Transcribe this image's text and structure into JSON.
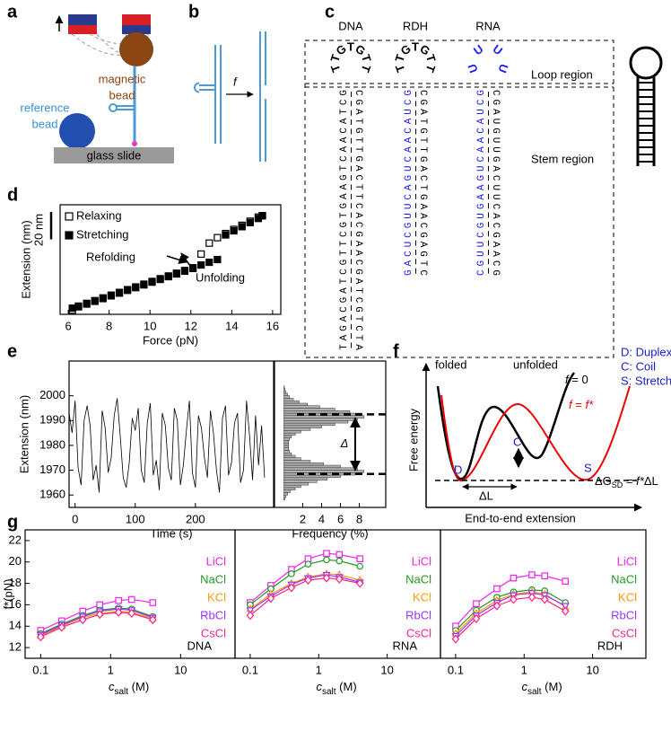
{
  "panel_labels": [
    "a",
    "b",
    "c",
    "d",
    "e",
    "f",
    "g"
  ],
  "panel_a": {
    "magnetic_bead": [
      "magnetic",
      "bead"
    ],
    "reference_bead": [
      "reference",
      "bead"
    ],
    "glass_slide": "glass slide"
  },
  "panel_b": {
    "force": "f"
  },
  "panel_c": {
    "columns": [
      {
        "name": "DNA",
        "loop": [
          "T",
          "T",
          "G",
          "T",
          "G",
          "T",
          "T"
        ],
        "left": "TAGACGATCGTTCGTGAAGTCAACATCG",
        "right": "CGATGTTGACTTCACGAACGATCGTCTA"
      },
      {
        "name": "RDH",
        "loop": [
          "T",
          "T",
          "G",
          "T",
          "G",
          "T",
          "T"
        ],
        "left": "GACUCGUUCAGUCAACAUCG",
        "right": "CGATGTTGACTGAACGAGTC"
      },
      {
        "name": "RNA",
        "loop": [
          "U",
          "U",
          "U",
          "U"
        ],
        "left": "CGUUCGUGAAGUCAACAUCG",
        "right": "CGAUGUUGACUUCACGAACG"
      }
    ],
    "loop_region": "Loop region",
    "stem_region": "Stem region"
  },
  "panel_f": {
    "folded": "folded",
    "unfolded": "unfolded",
    "f0": [
      "f",
      " = 0"
    ],
    "fstar": [
      "f",
      " = ",
      "f*"
    ],
    "key": [
      "D: Duplex",
      "C: Coil",
      "S: Stretched"
    ],
    "states": [
      "D",
      "C",
      "S"
    ],
    "delta_l": "ΔL",
    "delta_g": [
      "ΔG",
      "SD",
      " = ",
      "f*",
      "ΔL"
    ],
    "ylabel": "Free energy",
    "xlabel": "End-to-end extension"
  },
  "chart_data": [
    {
      "type": "scatter",
      "xlabel": "Force (pN)",
      "ylabel": "Extension (nm)",
      "xlim": [
        5.6,
        16.4
      ],
      "xticks": [
        6,
        8,
        10,
        12,
        14,
        16
      ],
      "ylim": [
        0,
        80
      ],
      "scale_bar": {
        "label": "20 nm",
        "value": 20
      },
      "legend": "top-left",
      "annotations": [
        "Refolding",
        "Unfolding"
      ],
      "series": [
        {
          "name": "Relaxing",
          "color": "#000000",
          "marker": "open",
          "x": [
            6.2,
            6.5,
            6.9,
            7.3,
            7.7,
            8.1,
            8.5,
            8.9,
            9.3,
            9.7,
            10.1,
            10.5,
            10.9,
            11.3,
            11.7,
            12.1,
            12.5,
            12.9,
            13.3,
            13.7,
            14.1,
            14.5,
            14.9,
            15.3,
            15.5
          ],
          "values": [
            3,
            5.5,
            7.5,
            9.5,
            11.5,
            13.5,
            15.5,
            17.5,
            19.5,
            21.5,
            23.5,
            25.5,
            27.5,
            29.5,
            31.5,
            33.5,
            44,
            52,
            56,
            59,
            62,
            65,
            68,
            71,
            72
          ]
        },
        {
          "name": "Stretching",
          "color": "#000000",
          "marker": "filled",
          "x": [
            6.2,
            6.5,
            6.9,
            7.3,
            7.7,
            8.1,
            8.5,
            8.9,
            9.3,
            9.7,
            10.1,
            10.5,
            10.9,
            11.3,
            11.7,
            12.1,
            12.5,
            12.9,
            13.3,
            13.7,
            14.1,
            14.5,
            14.9,
            15.3,
            15.5
          ],
          "values": [
            4.5,
            6,
            8,
            10,
            12,
            14,
            16,
            18,
            20,
            22,
            24,
            26,
            28,
            30,
            32,
            34,
            36,
            38,
            40,
            58,
            61,
            64,
            67,
            70,
            72
          ]
        }
      ]
    },
    {
      "type": "line",
      "xlabel": "Time (s)",
      "ylabel": "Extension (nm)",
      "xlim": [
        -10,
        330
      ],
      "xticks": [
        0,
        100,
        200
      ],
      "ylim": [
        1955,
        2014
      ],
      "yticks": [
        1960,
        1970,
        1980,
        1990,
        2000
      ],
      "color": "#000000",
      "x": [
        -10,
        -5,
        0,
        5,
        10,
        15,
        20,
        25,
        30,
        35,
        40,
        45,
        50,
        55,
        60,
        65,
        70,
        75,
        80,
        85,
        90,
        95,
        100,
        105,
        110,
        115,
        120,
        125,
        130,
        135,
        140,
        145,
        150,
        155,
        160,
        165,
        170,
        175,
        180,
        185,
        190,
        195,
        200,
        205,
        210,
        215,
        220,
        225,
        230,
        235,
        240,
        245,
        250,
        255,
        260,
        265,
        270,
        275,
        280,
        285,
        290,
        295,
        300,
        305,
        310,
        315
      ],
      "values": [
        1993,
        1985,
        1998,
        1971,
        1964,
        1990,
        1996,
        1988,
        1966,
        1972,
        1961,
        1994,
        1987,
        1969,
        1975,
        1992,
        1999,
        1984,
        1967,
        1963,
        1973,
        1991,
        1986,
        1995,
        1970,
        1965,
        1989,
        1997,
        1968,
        1974,
        1962,
        1993,
        1988,
        1971,
        1966,
        1995,
        1990,
        1964,
        1972,
        1986,
        1998,
        1969,
        1963,
        1992,
        1987,
        1975,
        1967,
        1994,
        1985,
        1970,
        1961,
        1991,
        1996,
        1968,
        1973,
        1989,
        1993,
        1965,
        1970,
        1998,
        1984,
        1966,
        1992,
        1972,
        1988,
        1967
      ]
    },
    {
      "type": "histogram",
      "orientation": "horizontal",
      "xlabel": "Frequency (%)",
      "xlim": [
        -1,
        10.8
      ],
      "xticks": [
        2,
        4,
        6,
        8
      ],
      "ylim": [
        1955,
        2014
      ],
      "color": "#b0b0b0",
      "bins": [
        1958,
        1959,
        1960,
        1961,
        1962,
        1963,
        1964,
        1965,
        1966,
        1967,
        1968,
        1969,
        1970,
        1971,
        1972,
        1973,
        1974,
        1975,
        1976,
        1977,
        1978,
        1979,
        1980,
        1981,
        1982,
        1983,
        1984,
        1985,
        1986,
        1987,
        1988,
        1989,
        1990,
        1991,
        1992,
        1993,
        1994,
        1995,
        1996,
        1997,
        1998,
        1999,
        2000,
        2001,
        2002,
        2003,
        2004
      ],
      "values": [
        0.1,
        0.2,
        0.4,
        0.7,
        1.2,
        1.8,
        2.6,
        3.5,
        4.6,
        6,
        7.5,
        8.5,
        7.8,
        6,
        4.2,
        2.8,
        1.8,
        1.2,
        0.8,
        0.6,
        0.5,
        0.5,
        0.5,
        0.5,
        0.6,
        0.8,
        1.2,
        1.8,
        2.8,
        4,
        5.4,
        6.8,
        7.8,
        8.5,
        8.2,
        7,
        5.4,
        3.8,
        2.5,
        1.6,
        1,
        0.6,
        0.4,
        0.2,
        0.1,
        0.05
      ],
      "levels": [
        1968.5,
        1992.5
      ],
      "annotation": "Δ"
    },
    {
      "type": "line",
      "title": "DNA",
      "xscale": "log",
      "xlabel": [
        "c",
        "salt",
        " (M)"
      ],
      "ylabel": "f*(pN)",
      "xlim": [
        0.06,
        60
      ],
      "xticks": [
        0.1,
        1,
        10
      ],
      "ylim": [
        11,
        23
      ],
      "yticks": [
        12,
        14,
        16,
        18,
        20,
        22
      ],
      "x": [
        0.1,
        0.2,
        0.4,
        0.7,
        1.3,
        2,
        4
      ],
      "series": [
        {
          "name": "LiCl",
          "color": "#ee22ee",
          "marker": "square",
          "values": [
            13.6,
            14.5,
            15.4,
            16.0,
            16.4,
            16.5,
            16.2
          ]
        },
        {
          "name": "NaCl",
          "color": "#229922",
          "marker": "circle",
          "values": [
            13.3,
            14.2,
            15.0,
            15.5,
            15.7,
            15.6,
            14.9
          ]
        },
        {
          "name": "KCl",
          "color": "#ff9900",
          "marker": "triangle-up",
          "values": [
            13.1,
            14.0,
            14.8,
            15.2,
            15.4,
            15.3,
            14.7
          ]
        },
        {
          "name": "RbCl",
          "color": "#9933ff",
          "marker": "triangle-down",
          "values": [
            13.2,
            14.1,
            14.9,
            15.4,
            15.6,
            15.5,
            14.8
          ]
        },
        {
          "name": "CsCl",
          "color": "#ff2288",
          "marker": "diamond",
          "values": [
            13.0,
            13.9,
            14.6,
            15.1,
            15.3,
            15.2,
            14.6
          ]
        }
      ]
    },
    {
      "type": "line",
      "title": "RNA",
      "xscale": "log",
      "xlabel": [
        "c",
        "salt",
        " (M)"
      ],
      "xlim": [
        0.06,
        60
      ],
      "xticks": [
        0.1,
        1,
        10
      ],
      "ylim": [
        11,
        23
      ],
      "x": [
        0.1,
        0.2,
        0.4,
        0.7,
        1.3,
        2,
        4
      ],
      "series": [
        {
          "name": "LiCl",
          "color": "#ee22ee",
          "marker": "square",
          "values": [
            16.2,
            17.8,
            19.3,
            20.3,
            20.8,
            20.7,
            20.3
          ]
        },
        {
          "name": "NaCl",
          "color": "#229922",
          "marker": "circle",
          "values": [
            16.0,
            17.5,
            18.9,
            19.8,
            20.2,
            20.1,
            19.6
          ]
        },
        {
          "name": "KCl",
          "color": "#ff9900",
          "marker": "triangle-up",
          "values": [
            15.6,
            17.0,
            18.0,
            18.6,
            18.9,
            18.8,
            18.3
          ]
        },
        {
          "name": "RbCl",
          "color": "#9933ff",
          "marker": "triangle-down",
          "values": [
            15.5,
            16.8,
            17.9,
            18.5,
            18.8,
            18.6,
            18.1
          ]
        },
        {
          "name": "CsCl",
          "color": "#ff2288",
          "marker": "diamond",
          "values": [
            15.0,
            16.6,
            17.6,
            18.3,
            18.5,
            18.4,
            18.0
          ]
        }
      ]
    },
    {
      "type": "line",
      "title": "RDH",
      "xscale": "log",
      "xlabel": [
        "c",
        "salt",
        " (M)"
      ],
      "xlim": [
        0.06,
        60
      ],
      "xticks": [
        0.1,
        1,
        10
      ],
      "ylim": [
        11,
        23
      ],
      "x": [
        0.1,
        0.2,
        0.4,
        0.7,
        1.3,
        2,
        4
      ],
      "series": [
        {
          "name": "LiCl",
          "color": "#ee22ee",
          "marker": "square",
          "values": [
            14.0,
            16.1,
            17.5,
            18.5,
            18.8,
            18.7,
            18.2
          ]
        },
        {
          "name": "NaCl",
          "color": "#229922",
          "marker": "circle",
          "values": [
            13.6,
            15.5,
            16.7,
            17.2,
            17.4,
            17.3,
            16.2
          ]
        },
        {
          "name": "KCl",
          "color": "#ff9900",
          "marker": "triangle-up",
          "values": [
            13.3,
            15.2,
            16.4,
            17.0,
            17.2,
            17.0,
            15.8
          ]
        },
        {
          "name": "RbCl",
          "color": "#9933ff",
          "marker": "triangle-down",
          "values": [
            13.1,
            15.0,
            16.2,
            16.9,
            17.1,
            16.9,
            15.9
          ]
        },
        {
          "name": "CsCl",
          "color": "#ff2288",
          "marker": "diamond",
          "values": [
            12.8,
            14.7,
            15.9,
            16.5,
            16.7,
            16.5,
            15.4
          ]
        }
      ]
    }
  ]
}
